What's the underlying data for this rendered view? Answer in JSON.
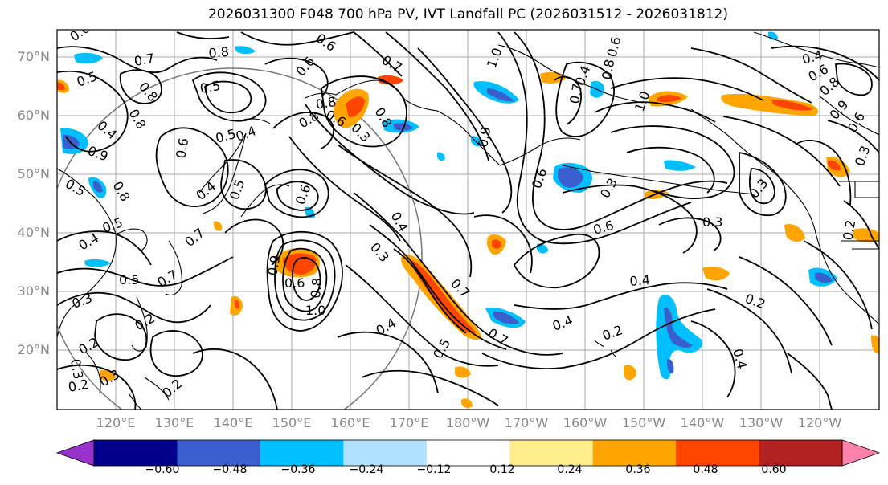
{
  "title": "2026031300 F048 700 hPa PV, IVT Landfall PC (2026031512 - 2026031812)",
  "lat_labels": [
    "70°N",
    "60°N",
    "50°N",
    "40°N",
    "30°N",
    "20°N"
  ],
  "lon_labels": [
    "120°E",
    "130°E",
    "140°E",
    "150°E",
    "160°E",
    "170°E",
    "180°W",
    "170°W",
    "160°W",
    "150°W",
    "140°W",
    "130°W",
    "120°W"
  ],
  "colorbar": {
    "ticks": [
      "−0.60",
      "−0.48",
      "−0.36",
      "−0.24",
      "−0.12",
      "0.12",
      "0.24",
      "0.36",
      "0.48",
      "0.60"
    ],
    "colors": [
      "#9932cc",
      "#00008b",
      "#3a5fcd",
      "#00bfff",
      "#b0e2ff",
      "#ffffff",
      "#ffec8b",
      "#ffa500",
      "#ff4500",
      "#b22222",
      "#ff82ab"
    ]
  },
  "contour_labels": [
    "0.6",
    "0.7",
    "0.5",
    "0.8",
    "0.5",
    "0.8",
    "0.4",
    "0.5",
    "0.9",
    "0.8",
    "0.5",
    "0.4",
    "0.5",
    "0.6",
    "0.4",
    "0.6",
    "0.7",
    "0.5",
    "0.5",
    "0.7",
    "0.4",
    "0.3",
    "0.2",
    "0.3",
    "0.2",
    "0.3",
    "0.2",
    "0.2",
    "0.9",
    "1.0",
    "0.8",
    "0.6",
    "0.4",
    "0.3",
    "0.3",
    "0.6",
    "0.4",
    "0.7",
    "0.5",
    "0.8",
    "0.6",
    "0.8",
    "0.8",
    "0.6",
    "0.8",
    "0.7",
    "1.0",
    "0.8",
    "0.6",
    "0.6",
    "0.4",
    "0.2",
    "0.3",
    "0.2",
    "0.4",
    "0.3",
    "0.4",
    "0.6",
    "0.9",
    "0.7",
    "0.7",
    "0.4",
    "0.2",
    "0.3",
    "0.6",
    "1.0",
    "0.9",
    "0.8",
    "0.6",
    "0.3",
    "0.4"
  ]
}
